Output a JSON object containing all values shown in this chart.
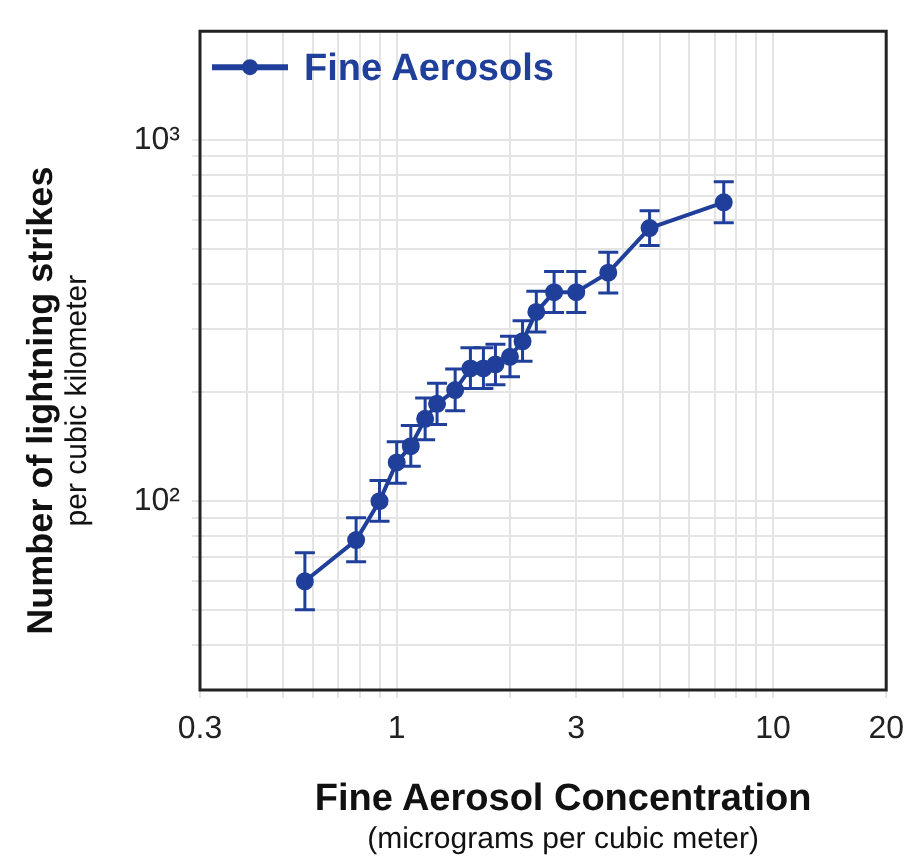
{
  "chart_data": {
    "type": "line",
    "xlabel": "Fine Aerosol Concentration\n(micrograms per cubic meter)",
    "ylabel": "Number of lightning strikes\nper cubic kilometer",
    "log": "xy",
    "grid": true,
    "legend": "top left",
    "marker": "circle",
    "line_style": "solid",
    "xlim": [
      0.3,
      20
    ],
    "xticks": [
      0.3,
      {
        "value": 0.4,
        "label": null
      },
      {
        "value": 0.5,
        "label": null
      },
      {
        "value": 0.6,
        "label": null
      },
      {
        "value": 0.7,
        "label": null
      },
      {
        "value": 0.8,
        "label": null
      },
      {
        "value": 0.9,
        "label": null
      },
      1,
      {
        "value": 2,
        "label": null
      },
      3,
      {
        "value": 4,
        "label": null
      },
      {
        "value": 5,
        "label": null
      },
      {
        "value": 6,
        "label": null
      },
      {
        "value": 7,
        "label": null
      },
      {
        "value": 8,
        "label": null
      },
      {
        "value": 9,
        "label": null
      },
      10,
      20
    ],
    "ylim": [
      30,
      2000
    ],
    "yticks": [
      {
        "value": 40,
        "label": null
      },
      {
        "value": 50,
        "label": null
      },
      {
        "value": 60,
        "label": null
      },
      {
        "value": 70,
        "label": null
      },
      {
        "value": 80,
        "label": null
      },
      {
        "value": 90,
        "label": null
      },
      {
        "value": 100,
        "label": "10²"
      },
      {
        "value": 200,
        "label": null
      },
      {
        "value": 300,
        "label": null
      },
      {
        "value": 400,
        "label": null
      },
      {
        "value": 500,
        "label": null
      },
      {
        "value": 600,
        "label": null
      },
      {
        "value": 700,
        "label": null
      },
      {
        "value": 800,
        "label": null
      },
      {
        "value": 900,
        "label": null
      },
      {
        "value": 1000,
        "label": "10³"
      }
    ],
    "series": [
      {
        "name": "Fine Aerosols",
        "color": "#1f3f9a",
        "x": [
          0.57,
          0.78,
          0.9,
          1.0,
          1.09,
          1.19,
          1.28,
          1.43,
          1.57,
          1.7,
          1.83,
          2.0,
          2.16,
          2.35,
          2.62,
          3.0,
          3.65,
          4.7,
          7.4
        ],
        "values": [
          60,
          78,
          100,
          128,
          142,
          169,
          186,
          203,
          233,
          233,
          239,
          251,
          277,
          334,
          379,
          379,
          429,
          570,
          672
        ],
        "errors": [
          [
            50,
            72
          ],
          [
            68,
            90
          ],
          [
            88,
            114
          ],
          [
            112,
            146
          ],
          [
            125,
            162
          ],
          [
            148,
            193
          ],
          [
            163,
            212
          ],
          [
            178,
            232
          ],
          [
            205,
            266
          ],
          [
            205,
            266
          ],
          [
            210,
            272
          ],
          [
            221,
            286
          ],
          [
            244,
            316
          ],
          [
            294,
            381
          ],
          [
            333,
            432
          ],
          [
            333,
            432
          ],
          [
            377,
            489
          ],
          [
            510,
            637
          ],
          [
            590,
            766
          ]
        ]
      }
    ]
  }
}
